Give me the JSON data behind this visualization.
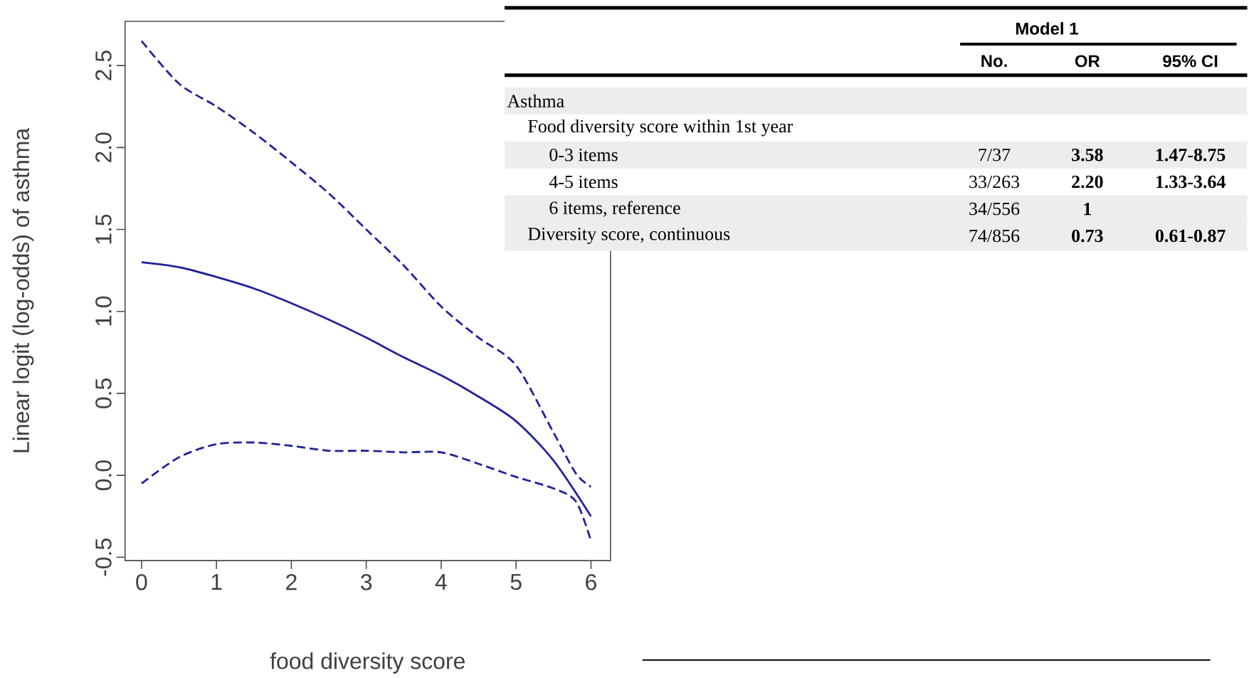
{
  "chart_data": [
    {
      "type": "line",
      "xlabel": "food diversity score",
      "ylabel": "Linear logit (log-odds) of asthma",
      "xlim": [
        -0.22,
        6.26
      ],
      "ylim": [
        -0.52,
        2.77
      ],
      "xticks": [
        0,
        1,
        2,
        3,
        4,
        5,
        6
      ],
      "yticks": [
        -0.5,
        {
          "value": 0,
          "label": "0.0"
        },
        0.5,
        {
          "value": 1,
          "label": "1.0"
        },
        1.5,
        {
          "value": 2,
          "label": "2.0"
        },
        2.5
      ],
      "series": [
        {
          "color": "#23239a",
          "line_style": "solid",
          "x": [
            0,
            0.5,
            1,
            1.5,
            2,
            2.5,
            3,
            3.5,
            4,
            4.5,
            5,
            5.5,
            6
          ],
          "values": [
            1.3,
            1.27,
            1.21,
            1.14,
            1.05,
            0.95,
            0.84,
            0.72,
            0.61,
            0.48,
            0.33,
            0.09,
            -0.25
          ]
        },
        {
          "color": "#23239a",
          "line_style": "dashed",
          "x": [
            0,
            0.5,
            1,
            1.5,
            2,
            2.5,
            3,
            3.5,
            4,
            4.5,
            5,
            5.5,
            5.8,
            6
          ],
          "values": [
            2.65,
            2.39,
            2.25,
            2.09,
            1.91,
            1.72,
            1.5,
            1.28,
            1.03,
            0.84,
            0.67,
            0.26,
            0.01,
            -0.07
          ]
        },
        {
          "color": "#23239a",
          "line_style": "dashed",
          "x": [
            0,
            0.5,
            1,
            1.5,
            2,
            2.5,
            3,
            3.5,
            4,
            4.5,
            5,
            5.5,
            5.8,
            6
          ],
          "values": [
            -0.05,
            0.11,
            0.19,
            0.2,
            0.18,
            0.15,
            0.15,
            0.14,
            0.14,
            0.07,
            -0.01,
            -0.08,
            -0.16,
            -0.4
          ]
        }
      ]
    },
    {
      "type": "other",
      "annotations": [
        "Model 1",
        "No.",
        "OR",
        "95% CI",
        "Asthma",
        "Food diversity score within 1st year",
        "0-3 items",
        "7/37",
        "3.58",
        "1.47-8.75",
        "4-5 items",
        "33/263",
        "2.20",
        "1.33-3.64",
        "6 items, reference",
        "34/556",
        "1",
        "Diversity score, continuous",
        "74/856",
        "0.73",
        "0.61-0.87"
      ]
    }
  ]
}
